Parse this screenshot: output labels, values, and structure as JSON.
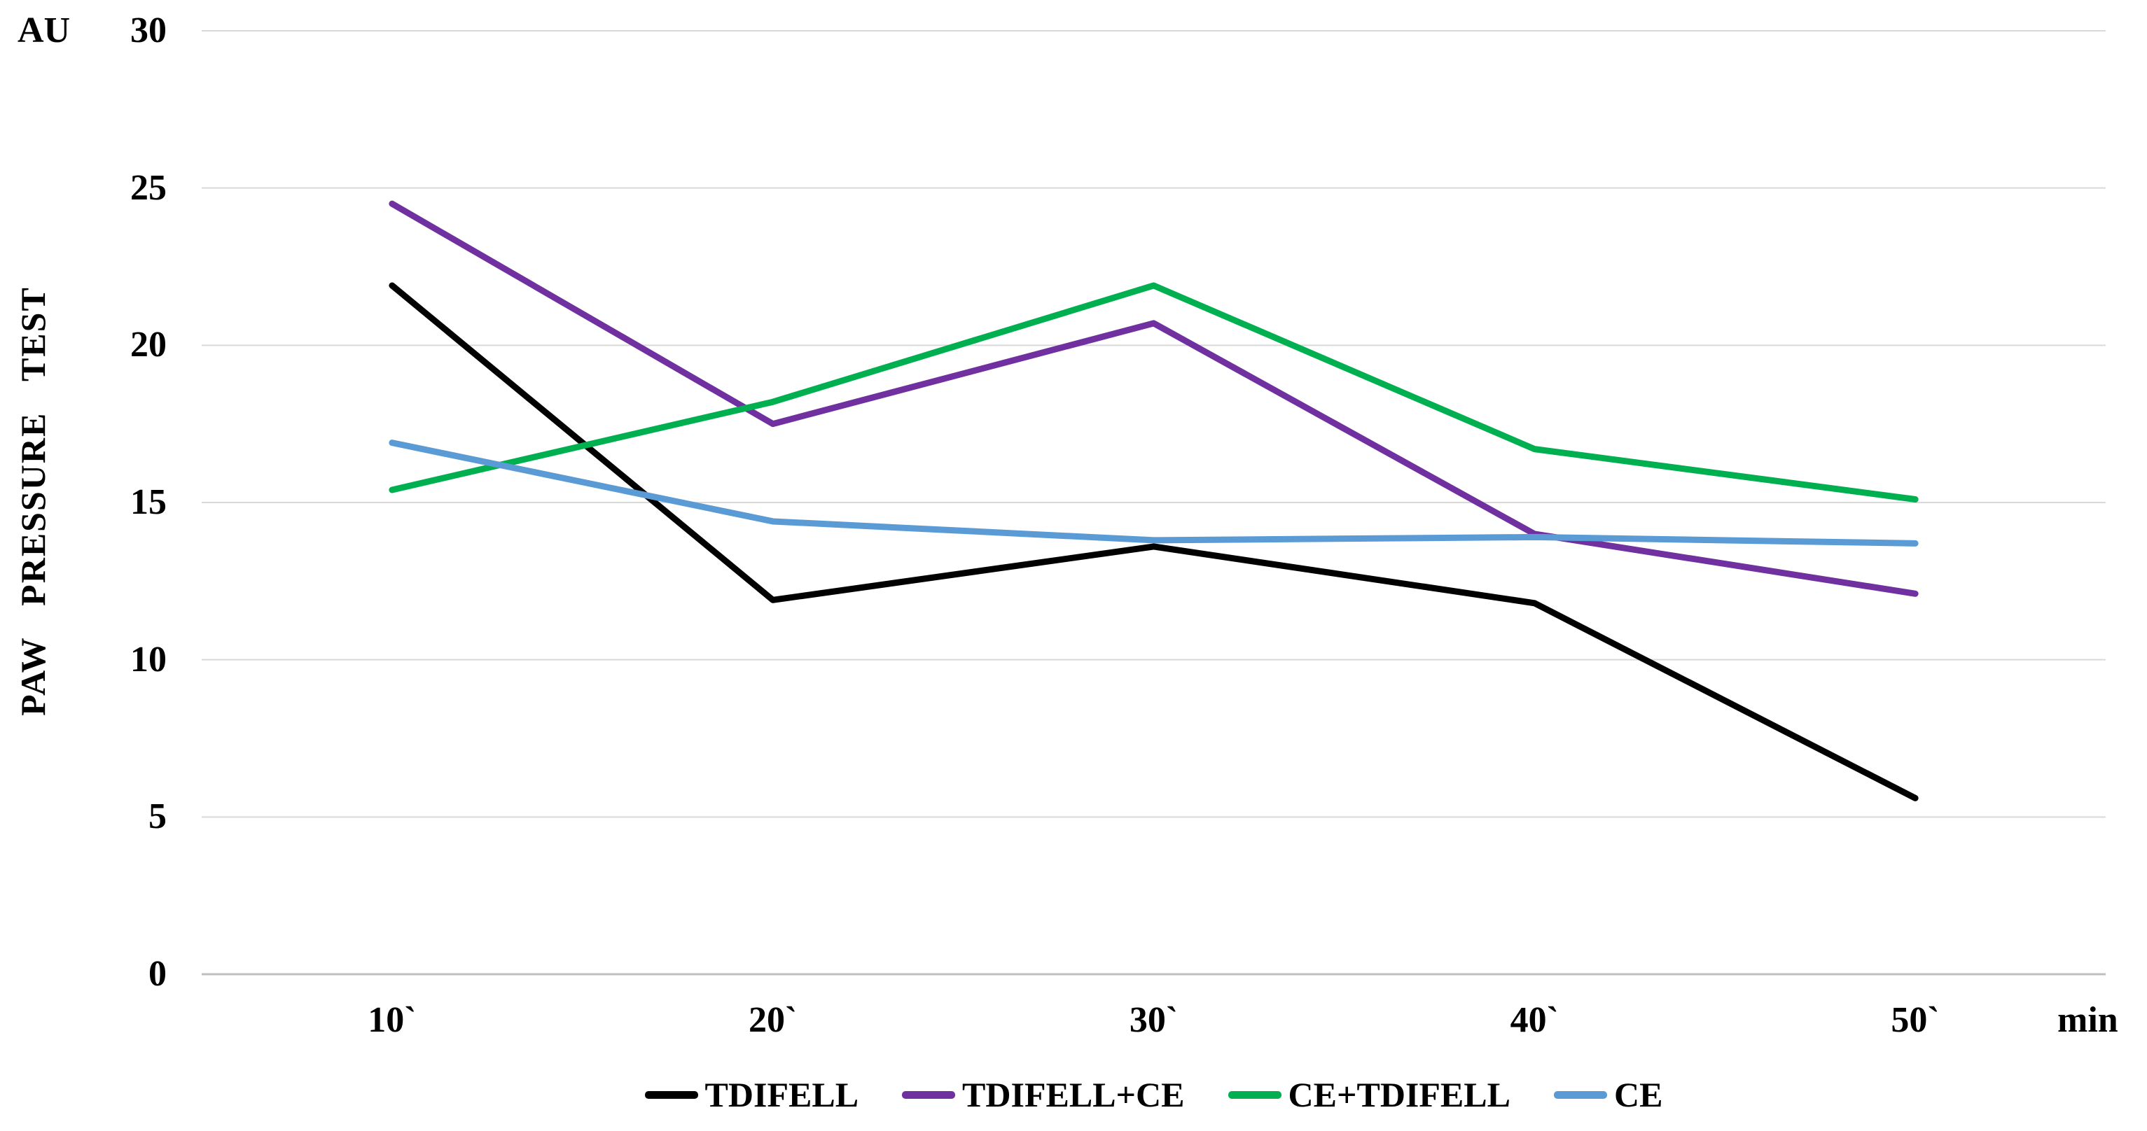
{
  "chart_data": {
    "type": "line",
    "title": "",
    "ylabel": "PAW PRESSURE TEST",
    "y_unit_label": "AU",
    "x_unit_label": "min",
    "categories": [
      "10`",
      "20`",
      "30`",
      "40`",
      "50`"
    ],
    "yticks": [
      0,
      5,
      10,
      15,
      20,
      25,
      30
    ],
    "ylim": [
      0,
      30
    ],
    "grid": true,
    "legend_position": "bottom",
    "gridline_color": "#D9D9D9",
    "axis_line_color": "#BFBFBF",
    "series": [
      {
        "name": "TDIFELL",
        "color": "#000000",
        "values": [
          21.9,
          11.9,
          13.6,
          11.8,
          5.6
        ]
      },
      {
        "name": "TDIFELL+CE",
        "color": "#7030A0",
        "values": [
          24.5,
          17.5,
          20.7,
          14.0,
          12.1
        ]
      },
      {
        "name": "CE+TDIFELL",
        "color": "#00B050",
        "values": [
          15.4,
          18.2,
          21.9,
          16.7,
          15.1
        ]
      },
      {
        "name": "CE",
        "color": "#5B9BD5",
        "values": [
          16.9,
          14.4,
          13.8,
          13.9,
          13.7
        ]
      }
    ]
  }
}
